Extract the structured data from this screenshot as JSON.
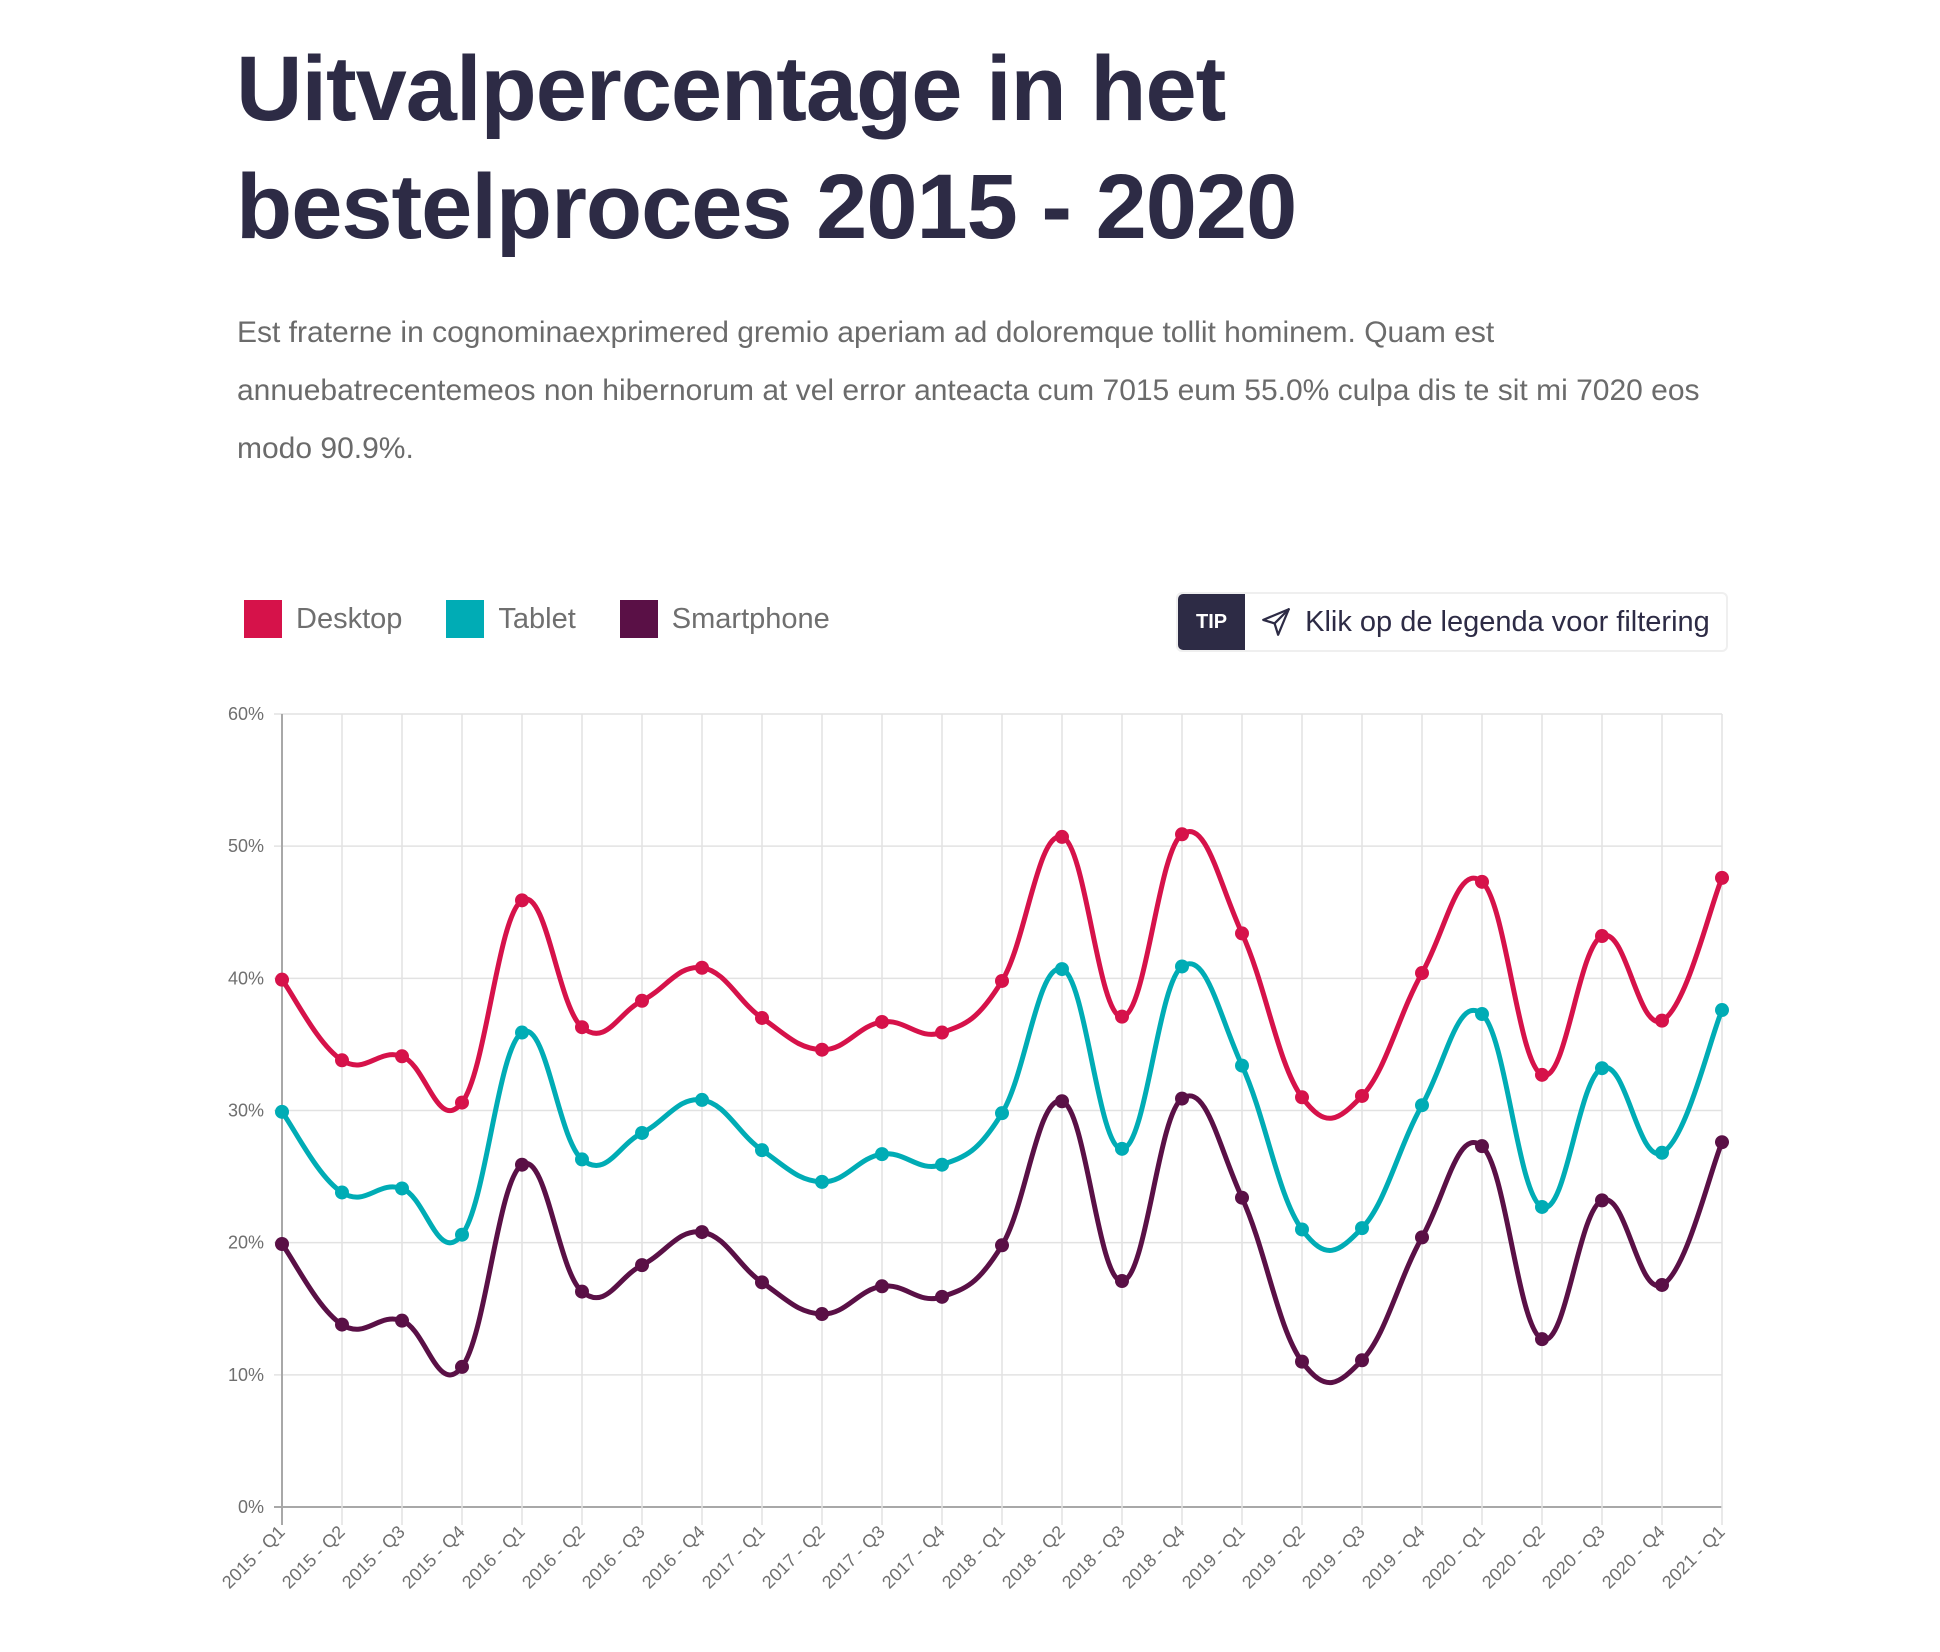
{
  "header": {
    "title": "Uitvalpercentage in het bestelproces 2015 - 2020",
    "description": "Est fraterne in cognominaexprimered gremio aperiam ad doloremque tollit hominem. Quam est annuebatrecentemeos non hibernorum at vel error anteacta cum 7015 eum 55.0% culpa dis te sit mi 7020 eos modo 90.9%."
  },
  "tip": {
    "badge": "TIP",
    "icon": "send-arrow-icon",
    "text": "Klik op de legenda voor filtering"
  },
  "chart_data": {
    "type": "line",
    "title": "Uitvalpercentage in het bestelproces 2015 - 2020",
    "xlabel": "",
    "ylabel": "",
    "ylim": [
      0,
      60
    ],
    "yticks": [
      0,
      10,
      20,
      30,
      40,
      50,
      60
    ],
    "ytick_labels": [
      "0%",
      "10%",
      "20%",
      "30%",
      "40%",
      "50%",
      "60%"
    ],
    "grid": true,
    "smooth": true,
    "legend_position": "top-left",
    "categories": [
      "2015 - Q1",
      "2015 - Q2",
      "2015 - Q3",
      "2015 - Q4",
      "2016 - Q1",
      "2016 - Q2",
      "2016 - Q3",
      "2016 - Q4",
      "2017 - Q1",
      "2017 - Q2",
      "2017 - Q3",
      "2017 - Q4",
      "2018 - Q1",
      "2018 - Q2",
      "2018 - Q3",
      "2018 - Q4",
      "2019 - Q1",
      "2019 - Q2",
      "2019 - Q3",
      "2019 - Q4",
      "2020 - Q1",
      "2020 - Q2",
      "2020 - Q3",
      "2020 - Q4",
      "2021 - Q1"
    ],
    "series": [
      {
        "name": "Desktop",
        "color": "#d6124a",
        "values": [
          39.9,
          33.8,
          34.1,
          30.6,
          45.9,
          36.3,
          38.3,
          40.8,
          37.0,
          34.6,
          36.7,
          35.9,
          39.8,
          50.7,
          37.1,
          50.9,
          43.4,
          31.0,
          31.1,
          40.4,
          47.3,
          32.7,
          43.2,
          36.8,
          47.6
        ]
      },
      {
        "name": "Tablet",
        "color": "#00acb5",
        "values": [
          29.9,
          23.8,
          24.1,
          20.6,
          35.9,
          26.3,
          28.3,
          30.8,
          27.0,
          24.6,
          26.7,
          25.9,
          29.8,
          40.7,
          27.1,
          40.9,
          33.4,
          21.0,
          21.1,
          30.4,
          37.3,
          22.7,
          33.2,
          26.8,
          37.6
        ]
      },
      {
        "name": "Smartphone",
        "color": "#5a1046",
        "values": [
          19.9,
          13.8,
          14.1,
          10.6,
          25.9,
          16.3,
          18.3,
          20.8,
          17.0,
          14.6,
          16.7,
          15.9,
          19.8,
          30.7,
          17.1,
          30.9,
          23.4,
          11.0,
          11.1,
          20.4,
          27.3,
          12.7,
          23.2,
          16.8,
          27.6
        ]
      }
    ]
  }
}
